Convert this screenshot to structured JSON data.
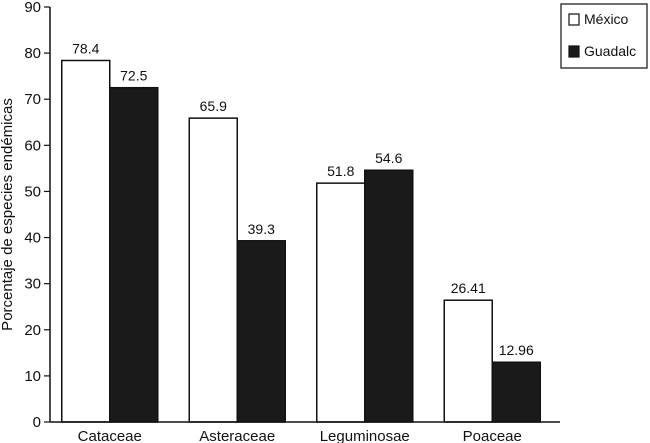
{
  "chart_data": {
    "type": "bar",
    "title": "",
    "xlabel": "",
    "ylabel": "Porcentaje de especies endémicas",
    "ylim": [
      0,
      90
    ],
    "yticks": [
      0,
      10,
      20,
      30,
      40,
      50,
      60,
      70,
      80,
      90
    ],
    "grid": false,
    "legend_position": "top-right",
    "categories": [
      "Cataceae",
      "Asteraceae",
      "Leguminosae",
      "Poaceae"
    ],
    "series": [
      {
        "name": "México",
        "values": [
          78.4,
          65.9,
          51.8,
          26.41
        ],
        "value_labels": [
          "78.4",
          "65.9",
          "51.8",
          "26.41"
        ],
        "color": "#ffffff"
      },
      {
        "name": "Guadalc",
        "values": [
          72.5,
          39.3,
          54.6,
          12.96
        ],
        "value_labels": [
          "72.5",
          "39.3",
          "54.6",
          "12.96"
        ],
        "color": "#1a1a1a"
      }
    ]
  }
}
